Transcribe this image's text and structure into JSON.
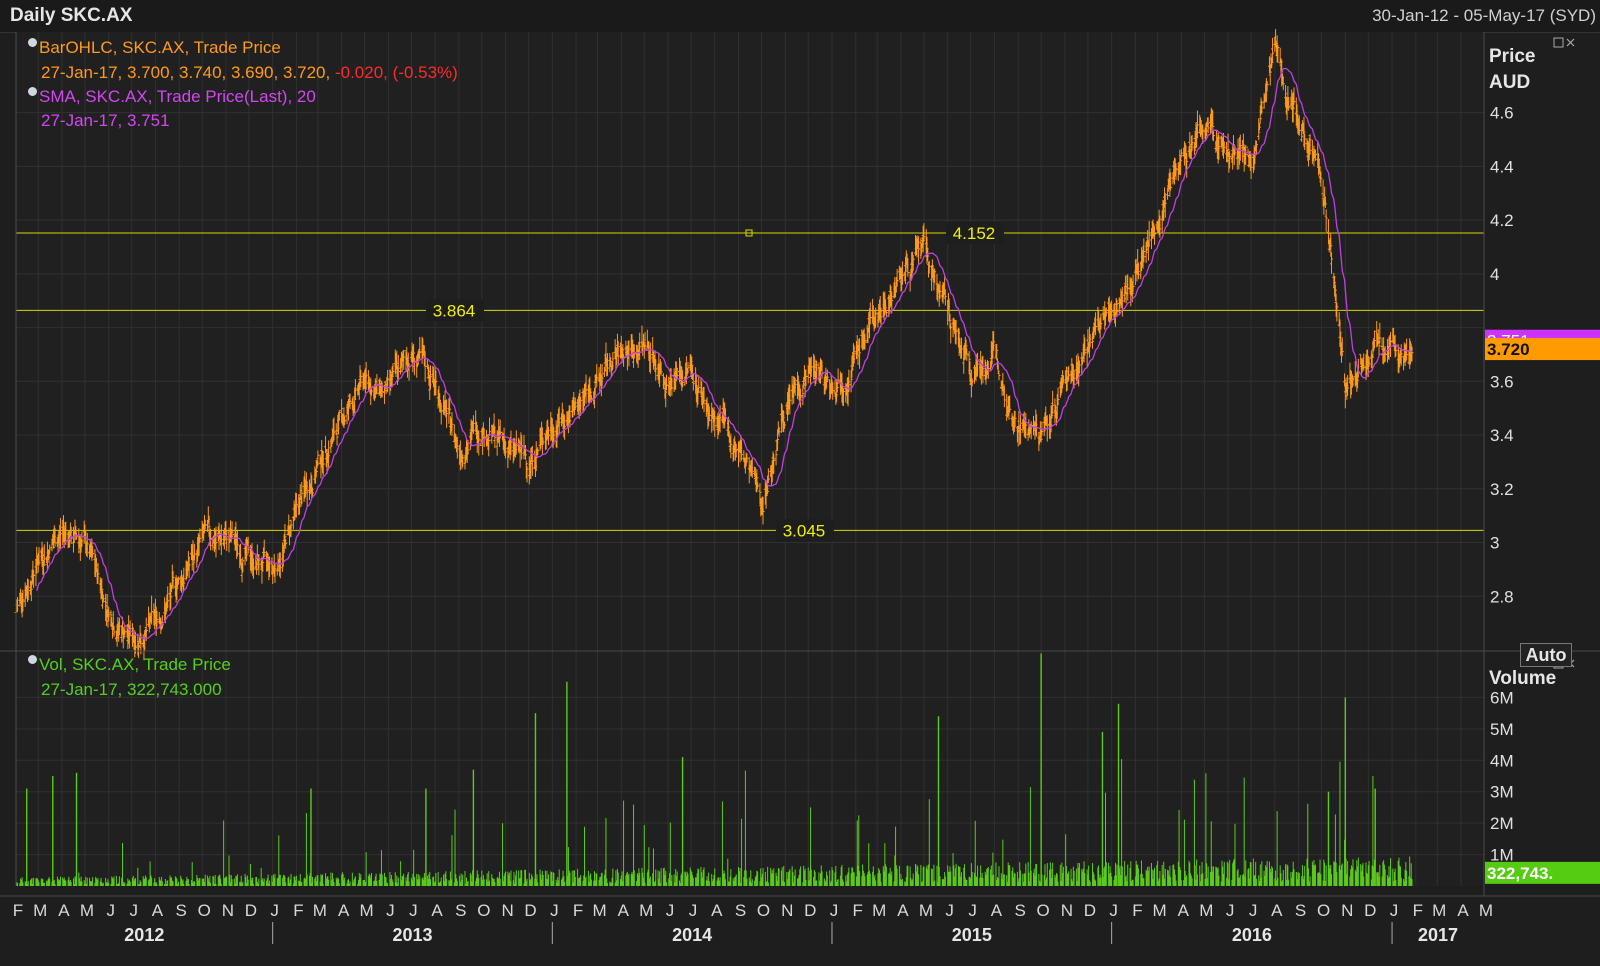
{
  "window": {
    "title": "Daily SKC.AX",
    "date_range": "30-Jan-12 - 05-May-17 (SYD)"
  },
  "legend_price": {
    "bar_series": "BarOHLC, SKC.AX, Trade Price",
    "bar_values": "27-Jan-17, 3.700, 3.740, 3.690, 3.720,",
    "bar_change": "-0.020, (-0.53%)",
    "sma_series": "SMA, SKC.AX, Trade Price(Last),  20",
    "sma_values": "27-Jan-17, 3.751"
  },
  "legend_volume": {
    "series": "Vol, SKC.AX, Trade Price",
    "values": "27-Jan-17, 322,743.000"
  },
  "price_axis": {
    "title_line1": "Price",
    "title_line2": "AUD",
    "auto_label": "Auto"
  },
  "volume_axis": {
    "title": "Volume"
  },
  "colors": {
    "bars": "#ff9a1a",
    "sma": "#c040e0",
    "volume": "#5ccc1a",
    "hline": "#d6d600",
    "background": "#1e1e1e",
    "grid": "#333333"
  },
  "icons": {
    "legend_bullet": "circle-bullet-icon",
    "panel_close": "close-icon"
  },
  "chart_data": [
    {
      "type": "line",
      "subtype": "ohlc-bar-with-sma",
      "title": "Daily SKC.AX",
      "ylabel": "Price AUD",
      "ylim": [
        2.6,
        4.9
      ],
      "yticks": [
        2.8,
        3,
        3.2,
        3.4,
        3.6,
        3.8,
        4,
        4.2,
        4.4,
        4.6
      ],
      "ytick_labels": [
        "2.8",
        "3",
        "3.2",
        "3.4",
        "3.6",
        "",
        "4",
        "4.2",
        "4.4",
        "4.6"
      ],
      "xlim": [
        "2012-02-01",
        "2017-05-01"
      ],
      "month_labels": [
        "F",
        "M",
        "A",
        "M",
        "J",
        "J",
        "A",
        "S",
        "O",
        "N",
        "D",
        "J",
        "F",
        "M",
        "A",
        "M",
        "J",
        "J",
        "A",
        "S",
        "O",
        "N",
        "D",
        "J",
        "F",
        "M",
        "A",
        "M",
        "J",
        "J",
        "A",
        "S",
        "O",
        "N",
        "D",
        "J",
        "F",
        "M",
        "A",
        "M",
        "J",
        "J",
        "A",
        "S",
        "O",
        "N",
        "D",
        "J",
        "F",
        "M",
        "A",
        "M",
        "J",
        "J",
        "A",
        "S",
        "O",
        "N",
        "D",
        "J",
        "F",
        "M",
        "A",
        "M"
      ],
      "year_labels": [
        "2012",
        "2013",
        "2014",
        "2015",
        "2016",
        "2017"
      ],
      "close_path": {
        "x": [
          "2012-02-01",
          "2012-03-01",
          "2012-04-01",
          "2012-05-01",
          "2012-06-01",
          "2012-07-01",
          "2012-08-01",
          "2012-09-01",
          "2012-10-01",
          "2012-11-01",
          "2012-12-01",
          "2013-01-01",
          "2013-02-01",
          "2013-03-01",
          "2013-04-01",
          "2013-05-01",
          "2013-06-01",
          "2013-07-01",
          "2013-08-01",
          "2013-09-01",
          "2013-10-01",
          "2013-11-01",
          "2013-12-01",
          "2014-01-01",
          "2014-02-01",
          "2014-03-01",
          "2014-04-01",
          "2014-05-01",
          "2014-06-01",
          "2014-07-01",
          "2014-08-01",
          "2014-09-01",
          "2014-10-01",
          "2014-11-01",
          "2014-12-01",
          "2015-01-01",
          "2015-02-01",
          "2015-03-01",
          "2015-04-01",
          "2015-05-01",
          "2015-06-01",
          "2015-07-01",
          "2015-08-01",
          "2015-09-01",
          "2015-10-01",
          "2015-11-01",
          "2015-12-01",
          "2016-01-01",
          "2016-02-01",
          "2016-03-01",
          "2016-04-01",
          "2016-05-01",
          "2016-06-01",
          "2016-07-01",
          "2016-08-01",
          "2016-09-01",
          "2016-10-01",
          "2016-11-01",
          "2016-12-01",
          "2017-01-01",
          "2017-01-27"
        ],
        "y": [
          2.75,
          2.95,
          3.05,
          3.0,
          2.75,
          2.65,
          2.7,
          2.85,
          3.0,
          3.02,
          2.95,
          2.88,
          3.1,
          3.3,
          3.45,
          3.6,
          3.55,
          3.7,
          3.6,
          3.35,
          3.45,
          3.35,
          3.3,
          3.45,
          3.5,
          3.6,
          3.7,
          3.75,
          3.62,
          3.65,
          3.45,
          3.35,
          3.15,
          3.5,
          3.65,
          3.6,
          3.7,
          3.85,
          4.0,
          4.08,
          3.85,
          3.65,
          3.7,
          3.45,
          3.38,
          3.6,
          3.75,
          3.85,
          4.0,
          4.2,
          4.45,
          4.55,
          4.45,
          4.4,
          4.8,
          4.6,
          4.4,
          3.55,
          3.75,
          3.72,
          3.72
        ]
      },
      "sma_window": 20,
      "horizontal_lines": [
        {
          "value": 4.152,
          "label": "4.152"
        },
        {
          "value": 3.864,
          "label": "3.864"
        },
        {
          "value": 3.045,
          "label": "3.045"
        }
      ],
      "last_values": {
        "sma": "3.751",
        "close": "3.720"
      }
    },
    {
      "type": "bar",
      "title": "Vol, SKC.AX, Trade Price",
      "ylabel": "Volume",
      "ylim": [
        0,
        7000000
      ],
      "yticks": [
        1000000,
        2000000,
        3000000,
        4000000,
        5000000,
        6000000
      ],
      "ytick_labels": [
        "1M",
        "2M",
        "3M",
        "4M",
        "5M",
        "6M"
      ],
      "last_value_label": "322,743.",
      "spikes": [
        {
          "x": "2012-02-15",
          "value": 3100000
        },
        {
          "x": "2012-03-20",
          "value": 3500000
        },
        {
          "x": "2012-04-20",
          "value": 3600000
        },
        {
          "x": "2013-02-20",
          "value": 3100000
        },
        {
          "x": "2013-07-20",
          "value": 3100000
        },
        {
          "x": "2013-09-20",
          "value": 3700000
        },
        {
          "x": "2013-12-10",
          "value": 5500000
        },
        {
          "x": "2014-01-20",
          "value": 6500000
        },
        {
          "x": "2014-06-20",
          "value": 4100000
        },
        {
          "x": "2015-05-20",
          "value": 5400000
        },
        {
          "x": "2015-10-01",
          "value": 7400000
        },
        {
          "x": "2015-12-20",
          "value": 4900000
        },
        {
          "x": "2016-01-10",
          "value": 5800000
        },
        {
          "x": "2016-10-10",
          "value": 3000000
        },
        {
          "x": "2016-11-01",
          "value": 6000000
        },
        {
          "x": "2016-12-10",
          "value": 3100000
        }
      ]
    }
  ]
}
